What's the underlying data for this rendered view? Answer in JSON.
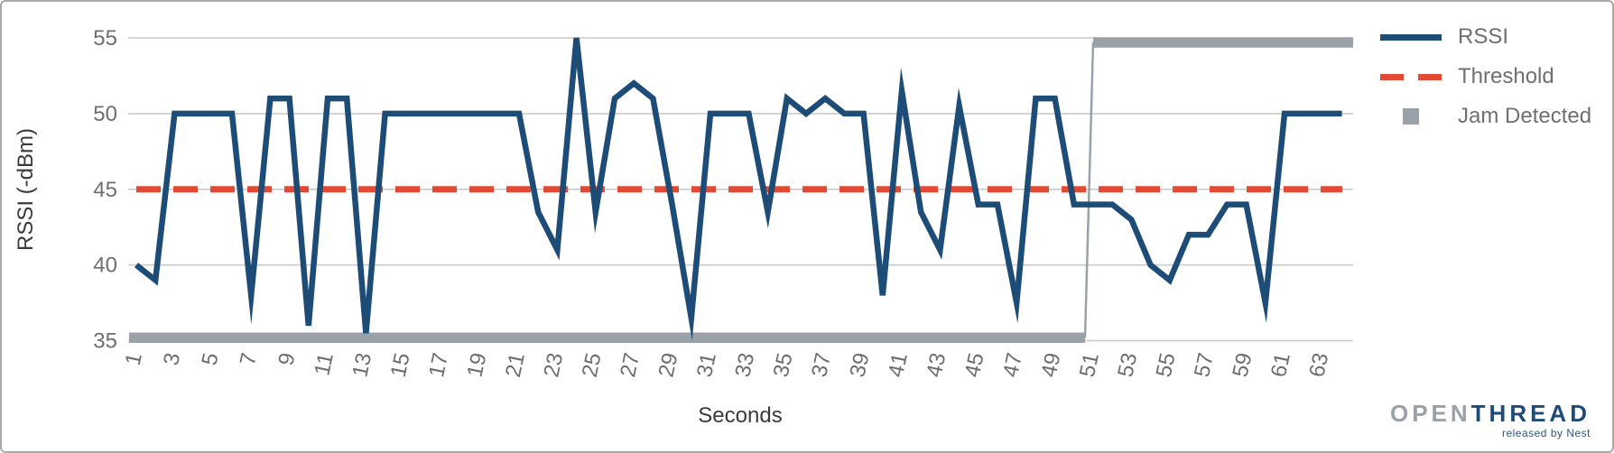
{
  "chart_data": {
    "type": "line",
    "title": "",
    "xlabel": "Seconds",
    "ylabel": "RSSI (-dBm)",
    "grid": "horizontal",
    "legend_position": "top-right",
    "x_axis": {
      "ticks": [
        1,
        3,
        5,
        7,
        9,
        11,
        13,
        15,
        17,
        19,
        21,
        23,
        25,
        27,
        29,
        31,
        33,
        35,
        37,
        39,
        41,
        43,
        45,
        47,
        49,
        51,
        53,
        55,
        57,
        59,
        61,
        63
      ],
      "range": [
        1,
        64
      ]
    },
    "y_axis": {
      "ticks": [
        35,
        40,
        45,
        50,
        55
      ],
      "range": [
        35,
        55
      ]
    },
    "x": [
      1,
      2,
      3,
      4,
      5,
      6,
      7,
      8,
      9,
      10,
      11,
      12,
      13,
      14,
      15,
      16,
      17,
      18,
      19,
      20,
      21,
      22,
      23,
      24,
      25,
      26,
      27,
      28,
      29,
      30,
      31,
      32,
      33,
      34,
      35,
      36,
      37,
      38,
      39,
      40,
      41,
      42,
      43,
      44,
      45,
      46,
      47,
      48,
      49,
      50,
      51,
      52,
      53,
      54,
      55,
      56,
      57,
      58,
      59,
      60,
      61,
      62,
      63,
      64
    ],
    "series": [
      {
        "name": "RSSI",
        "type": "line",
        "color": "#1d4c77",
        "values": [
          40,
          39,
          50,
          50,
          50,
          50,
          38,
          51,
          51,
          36,
          51,
          51,
          35.5,
          50,
          50,
          50,
          50,
          50,
          50,
          50,
          50,
          43.5,
          41,
          55,
          43.5,
          51,
          52,
          51,
          44,
          36.5,
          50,
          50,
          50,
          43.5,
          51,
          50,
          51,
          50,
          50,
          38,
          51.5,
          43.5,
          41,
          50.5,
          44,
          44,
          37.5,
          51,
          51,
          44,
          44,
          44,
          43,
          40,
          39,
          42,
          42,
          44,
          44,
          37.5,
          50,
          50,
          50,
          50
        ]
      },
      {
        "name": "Threshold",
        "type": "line",
        "style": "dashed",
        "color": "#e24a33",
        "value": 45
      },
      {
        "name": "Jam Detected",
        "type": "step",
        "color": "#9aa2a9",
        "low_value": 35.2,
        "high_value": 54.7,
        "low_x_range": [
          1,
          51
        ],
        "high_x_range": [
          51,
          64
        ]
      }
    ],
    "colors": {
      "gridline": "#cbcbcb",
      "tick_label": "#6e6e6e",
      "axis_title": "#3a3a3a"
    }
  },
  "logo": {
    "open": "OPEN",
    "thread": "THREAD",
    "tagline": "released by Nest"
  }
}
